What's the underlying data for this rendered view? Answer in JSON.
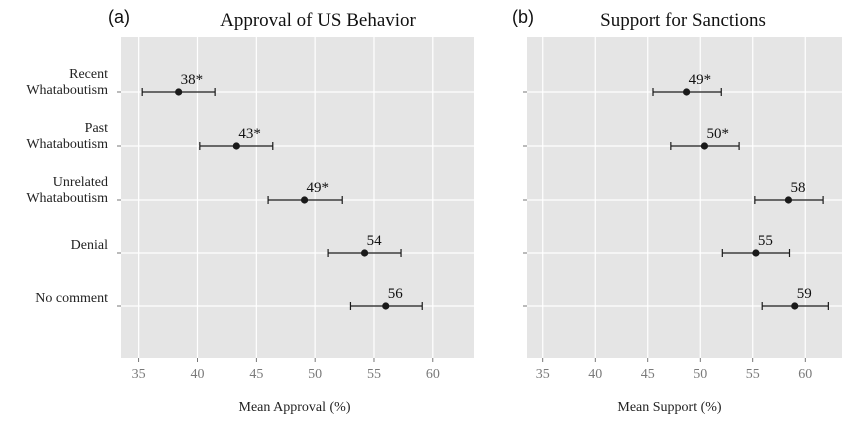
{
  "chart_data": [
    {
      "type": "scatter",
      "panel_letter": "(a)",
      "title": "Approval of US Behavior",
      "xlabel": "Mean Approval (%)",
      "ylabel": "",
      "xlim": [
        33.5,
        63.5
      ],
      "xticks": [
        35,
        40,
        45,
        50,
        55,
        60
      ],
      "grid": true,
      "categories": [
        [
          "Recent",
          "Whataboutism"
        ],
        [
          "Past",
          "Whataboutism"
        ],
        [
          "Unrelated",
          "Whataboutism"
        ],
        [
          "Denial"
        ],
        [
          "No comment"
        ]
      ],
      "points": [
        {
          "value": 38.4,
          "lower": 35.3,
          "upper": 41.5,
          "label": "38*"
        },
        {
          "value": 43.3,
          "lower": 40.2,
          "upper": 46.4,
          "label": "43*"
        },
        {
          "value": 49.1,
          "lower": 46.0,
          "upper": 52.3,
          "label": "49*"
        },
        {
          "value": 54.2,
          "lower": 51.1,
          "upper": 57.3,
          "label": "54"
        },
        {
          "value": 56.0,
          "lower": 53.0,
          "upper": 59.1,
          "label": "56"
        }
      ]
    },
    {
      "type": "scatter",
      "panel_letter": "(b)",
      "title": "Support for Sanctions",
      "xlabel": "Mean Support (%)",
      "ylabel": "",
      "xlim": [
        33.5,
        63.5
      ],
      "xticks": [
        35,
        40,
        45,
        50,
        55,
        60
      ],
      "grid": true,
      "categories": [
        [
          "Recent",
          "Whataboutism"
        ],
        [
          "Past",
          "Whataboutism"
        ],
        [
          "Unrelated",
          "Whataboutism"
        ],
        [
          "Denial"
        ],
        [
          "No comment"
        ]
      ],
      "points": [
        {
          "value": 48.7,
          "lower": 45.5,
          "upper": 52.0,
          "label": "49*"
        },
        {
          "value": 50.4,
          "lower": 47.2,
          "upper": 53.7,
          "label": "50*"
        },
        {
          "value": 58.4,
          "lower": 55.2,
          "upper": 61.7,
          "label": "58"
        },
        {
          "value": 55.3,
          "lower": 52.1,
          "upper": 58.5,
          "label": "55"
        },
        {
          "value": 59.0,
          "lower": 55.9,
          "upper": 62.2,
          "label": "59"
        }
      ]
    }
  ]
}
